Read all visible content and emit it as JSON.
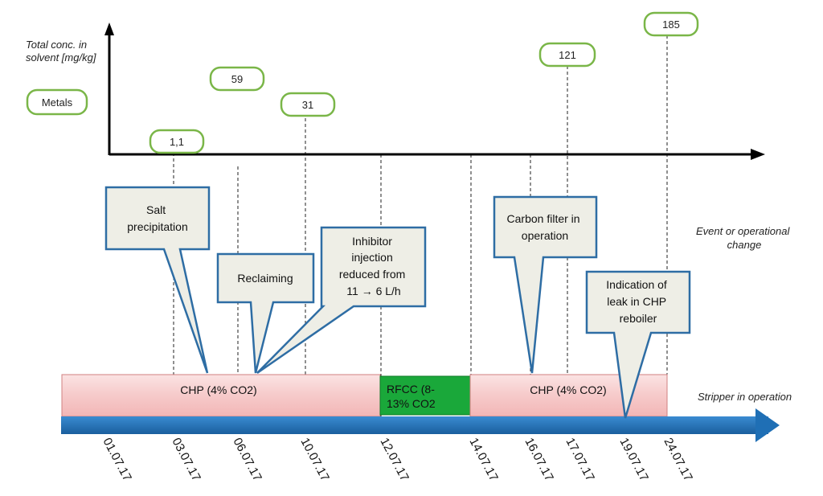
{
  "y_axis_label": [
    "Total conc. in",
    "solvent [mg/kg]"
  ],
  "series_label": "Metals",
  "values": [
    {
      "date": "03.07.17",
      "label": "1,1"
    },
    {
      "date": "06.07.17",
      "label": "59"
    },
    {
      "date": "10.07.17",
      "label": "31"
    },
    {
      "date": "17.07.17",
      "label": "121"
    },
    {
      "date": "24.07.17",
      "label": "185"
    }
  ],
  "events_label": [
    "Event or operational",
    "change"
  ],
  "stripper_label": "Stripper in operation",
  "events": [
    {
      "text": [
        "Salt",
        "precipitation"
      ]
    },
    {
      "text": [
        "Reclaiming"
      ]
    },
    {
      "text": [
        "Inhibitor",
        "injection",
        "reduced  from",
        "11 → 6 L/h"
      ]
    },
    {
      "text": [
        "Carbon filter in",
        "operation"
      ]
    },
    {
      "text": [
        "Indication of",
        "leak in CHP",
        "reboiler"
      ]
    }
  ],
  "operation_bars": [
    {
      "text": [
        "CHP (4% CO2)"
      ],
      "color": "#f6c9c9"
    },
    {
      "text": [
        "RFCC (8-",
        "13% CO2"
      ],
      "color": "#1aa83a"
    },
    {
      "text": [
        "CHP (4% CO2)"
      ],
      "color": "#f6c9c9"
    }
  ],
  "dates": [
    "01.07.17",
    "03.07.17",
    "06.07.17",
    "10.07.17",
    "12.07.17",
    "14.07.17",
    "16.07.17",
    "17.07.17",
    "19.07.17",
    "24.07.17"
  ],
  "colors": {
    "badge_border": "#7ab648",
    "callout_border": "#2e6da4",
    "callout_fill": "#eeeee6",
    "timeline_arrow": "#1f6fb5"
  }
}
